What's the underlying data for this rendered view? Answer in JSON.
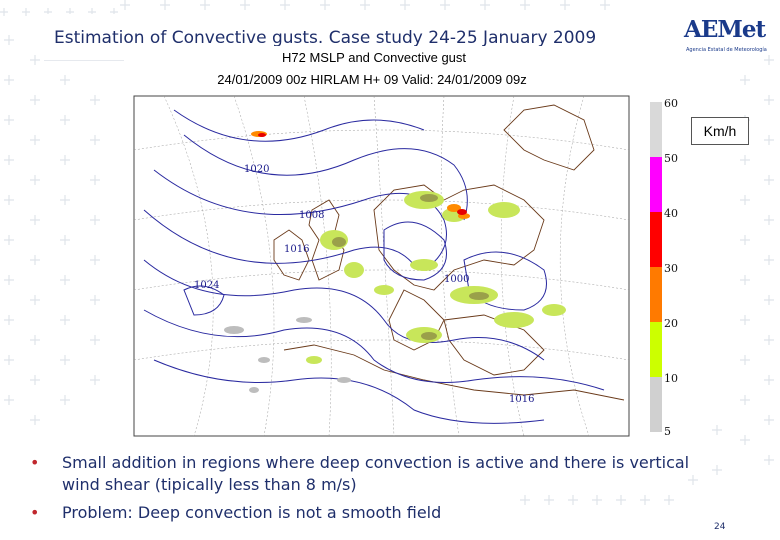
{
  "slide": {
    "title": "Estimation of Convective gusts. Case study 24-25 January 2009",
    "logo_text": "AEMet",
    "logo_subtext": "Agencia Estatal de Meteorología",
    "page_number": "24"
  },
  "map": {
    "title_line1": "H72  MSLP and Convective gust",
    "title_line2": "24/01/2009 00z  HIRLAM  H+ 09   Valid: 24/01/2009 09z",
    "unit": "Km/h",
    "colorbar": {
      "labels": [
        "60",
        "50",
        "40",
        "30",
        "20",
        "10",
        "5"
      ],
      "colors": [
        "#d9d9d9",
        "#ff00ff",
        "#ff0000",
        "#ff7a00",
        "#ccff00",
        "#d0d0d0"
      ]
    },
    "isobars": [
      "1020",
      "1008",
      "1016",
      "1024",
      "1000",
      "1016"
    ]
  },
  "bullets": [
    "Small addition in regions where deep convection is active and there is vertical wind shear (tipically less than 8 m/s)",
    "Problem: Deep convection is not a smooth field"
  ]
}
